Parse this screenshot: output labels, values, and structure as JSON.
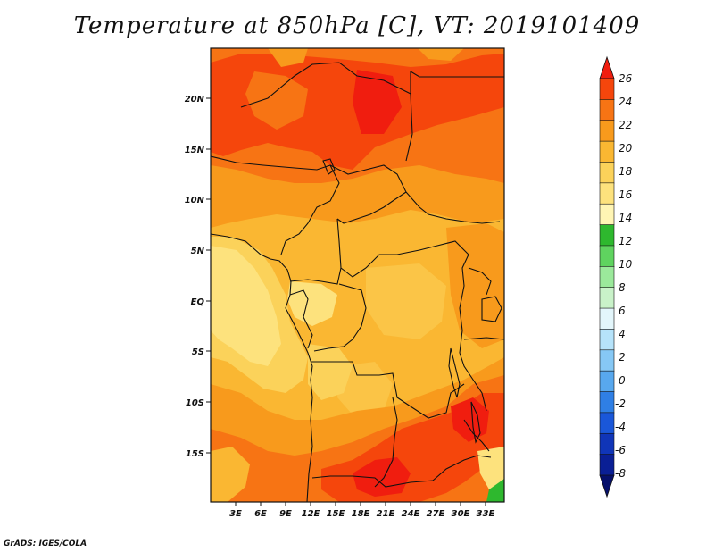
{
  "title": "Temperature at 850hPa [C], VT: 2019101409",
  "credit": "GrADS: IGES/COLA",
  "map": {
    "lat_labels": [
      "20N",
      "15N",
      "10N",
      "5N",
      "EQ",
      "5S",
      "10S",
      "15S"
    ],
    "lon_labels": [
      "3E",
      "6E",
      "9E",
      "12E",
      "15E",
      "18E",
      "21E",
      "24E",
      "27E",
      "30E",
      "33E"
    ]
  },
  "colorbar": {
    "labels": [
      "26",
      "24",
      "22",
      "20",
      "18",
      "16",
      "14",
      "12",
      "10",
      "8",
      "6",
      "4",
      "2",
      "0",
      "-2",
      "-4",
      "-6",
      "-8"
    ],
    "colors": [
      "#f01d0f",
      "#f5460c",
      "#f77414",
      "#f89a1c",
      "#fab732",
      "#fbd25a",
      "#fde27d",
      "#fff5b4",
      "#2eb82e",
      "#5fd35f",
      "#9be99b",
      "#c9f2c9",
      "#e3f6fb",
      "#b6e3fa",
      "#86c8f5",
      "#58a8ee",
      "#2f7fe5",
      "#1a57d9",
      "#1035b8",
      "#0a1f95",
      "#06106b"
    ]
  }
}
